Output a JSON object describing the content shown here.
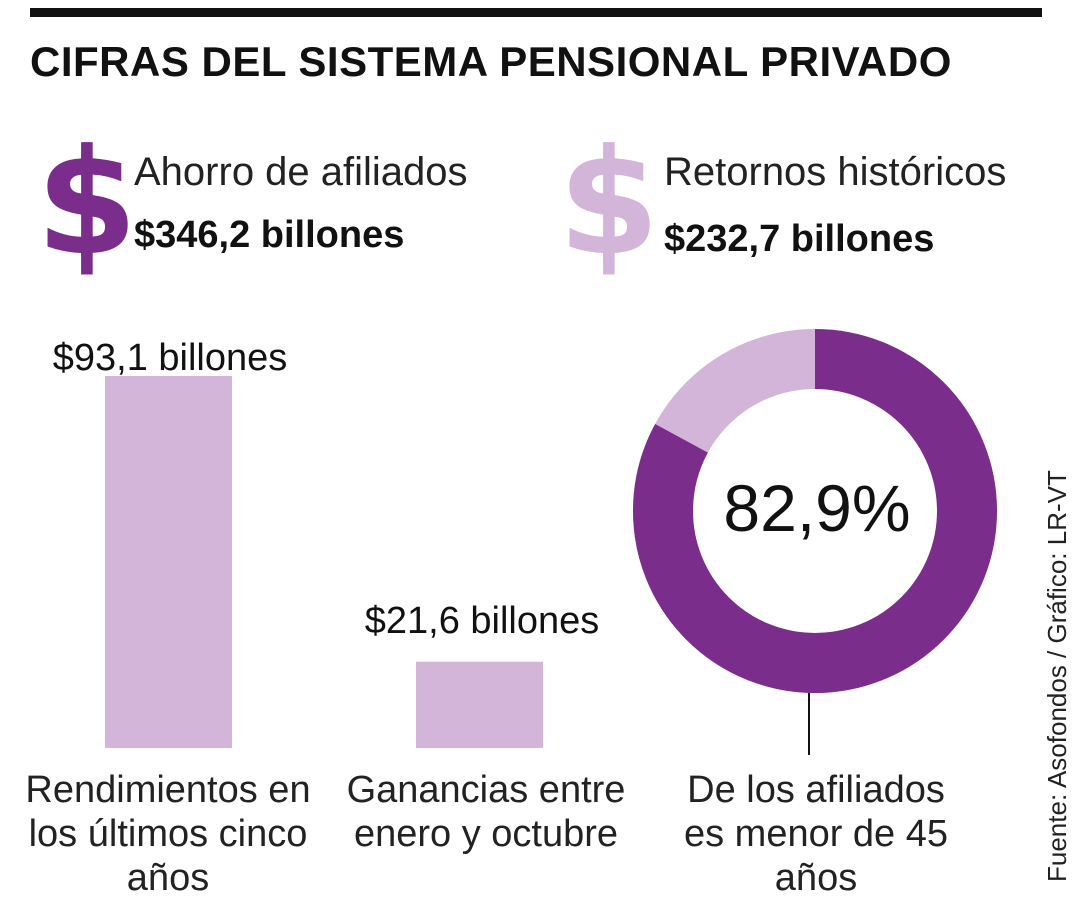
{
  "header": {
    "title": "CIFRAS DEL SISTEMA PENSIONAL PRIVADO"
  },
  "stats": [
    {
      "label": "Ahorro de afiliados",
      "value": "$346,2 billones",
      "icon": "dollar-sign-icon",
      "color": "#7b2d8b"
    },
    {
      "label": "Retornos históricos",
      "value": "$232,7 billones",
      "icon": "dollar-sign-icon",
      "color": "#d3b5d9"
    }
  ],
  "chart_data": [
    {
      "type": "bar",
      "title": "",
      "categories": [
        "Rendimientos en los últimos cinco años",
        "Ganancias entre enero y octubre"
      ],
      "values": [
        93.1,
        21.6
      ],
      "value_labels": [
        "$93,1 billones",
        "$21,6 billones"
      ],
      "unit": "billones de pesos",
      "xlabel": "",
      "ylabel": "",
      "ylim": [
        0,
        93.1
      ],
      "color": "#d3b5d9"
    },
    {
      "type": "pie",
      "title": "",
      "categories": [
        "De los afiliados es menor de 45 años",
        ""
      ],
      "values": [
        82.9,
        17.1
      ],
      "value_label": "82,9%",
      "colors": [
        "#7b2d8b",
        "#d3b5d9"
      ]
    }
  ],
  "labels": {
    "bar1": "Rendimientos en los últimos cinco años",
    "bar2": "Ganancias entre enero y octubre",
    "donut": "De los afiliados es menor de 45 años"
  },
  "footer": {
    "source": "Fuente: Asofondos / Gráfico: LR-VT"
  }
}
